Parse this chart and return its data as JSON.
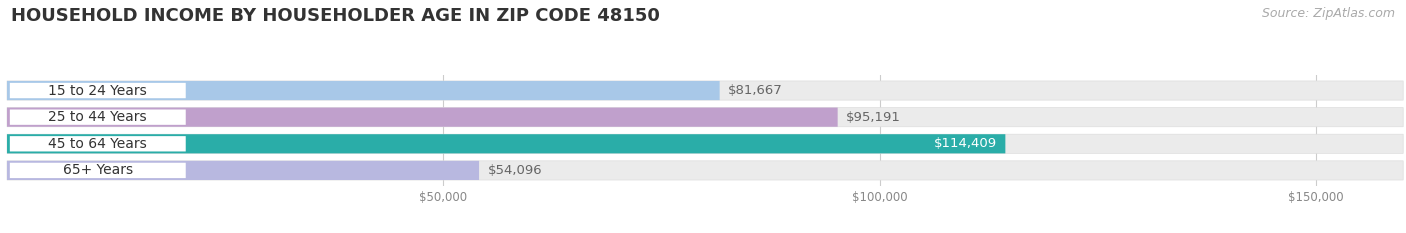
{
  "title": "HOUSEHOLD INCOME BY HOUSEHOLDER AGE IN ZIP CODE 48150",
  "source": "Source: ZipAtlas.com",
  "categories": [
    "15 to 24 Years",
    "25 to 44 Years",
    "45 to 64 Years",
    "65+ Years"
  ],
  "values": [
    81667,
    95191,
    114409,
    54096
  ],
  "bar_colors": [
    "#a8c8e8",
    "#c0a0cc",
    "#2aada8",
    "#b8b8e0"
  ],
  "label_pill_colors": [
    "#a8c8e8",
    "#c090c8",
    "#1e9e9a",
    "#9898cc"
  ],
  "label_colors": [
    "#555555",
    "#555555",
    "#ffffff",
    "#555555"
  ],
  "value_colors": [
    "#666666",
    "#666666",
    "#ffffff",
    "#666666"
  ],
  "background_color": "#ffffff",
  "bar_bg_color": "#ebebeb",
  "bar_border_color": "#dddddd",
  "xlim": [
    0,
    160000
  ],
  "xticks": [
    50000,
    100000,
    150000
  ],
  "xtick_labels": [
    "$50,000",
    "$100,000",
    "$150,000"
  ],
  "bar_height": 0.72,
  "title_fontsize": 13,
  "label_fontsize": 10,
  "value_fontsize": 9.5,
  "source_fontsize": 9
}
